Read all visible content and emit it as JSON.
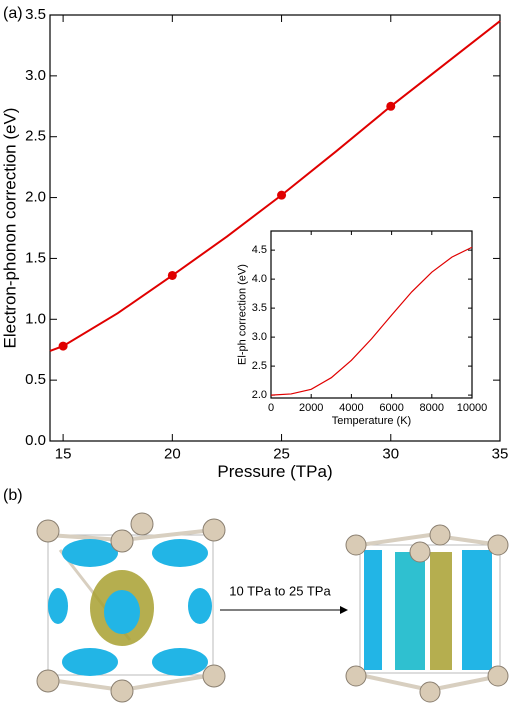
{
  "panel_labels": [
    "(a)",
    "(b)"
  ],
  "chart_data": [
    {
      "type": "line",
      "xlabel": "Pressure (TPa)",
      "ylabel": "Electron-phonon correction (eV)",
      "x": [
        14.4,
        15,
        17.5,
        20,
        22.5,
        25,
        27.5,
        30,
        32.5,
        35
      ],
      "series": [
        {
          "color": "#e00000",
          "values": [
            0.74,
            0.78,
            1.05,
            1.36,
            1.68,
            2.02,
            2.38,
            2.75,
            3.1,
            3.45
          ],
          "line": true,
          "markers": false
        },
        {
          "color": "#e00000",
          "values": [
            null,
            0.78,
            null,
            1.36,
            null,
            2.02,
            null,
            2.75,
            null,
            null
          ],
          "line": false,
          "markers": true
        }
      ],
      "xlim": [
        14.4,
        35
      ],
      "xticks": [
        15,
        20,
        25,
        30,
        35
      ],
      "ylim": [
        0,
        3.5
      ],
      "yticks": [
        {
          "value": 0,
          "label": "0.0"
        },
        {
          "value": 0.5,
          "label": "0.5"
        },
        {
          "value": 1,
          "label": "1.0"
        },
        {
          "value": 1.5,
          "label": "1.5"
        },
        {
          "value": 2,
          "label": "2.0"
        },
        {
          "value": 2.5,
          "label": "2.5"
        },
        {
          "value": 3,
          "label": "3.0"
        },
        {
          "value": 3.5,
          "label": "3.5"
        }
      ]
    },
    {
      "type": "line",
      "xlabel": "Temperature (K)",
      "ylabel": "El-ph correction (eV)",
      "x": [
        0,
        1000,
        2000,
        3000,
        4000,
        5000,
        6000,
        7000,
        8000,
        9000,
        10000
      ],
      "series": [
        {
          "color": "#e00000",
          "values": [
            2.0,
            2.02,
            2.1,
            2.3,
            2.6,
            2.97,
            3.38,
            3.78,
            4.12,
            4.38,
            4.55
          ],
          "line": true,
          "markers": false
        }
      ],
      "xlim": [
        0,
        10000
      ],
      "xticks": [
        0,
        2000,
        4000,
        6000,
        8000,
        10000
      ],
      "ylim": [
        1.95,
        4.83
      ],
      "yticks": [
        {
          "value": 2,
          "label": "2.0"
        },
        {
          "value": 2.5,
          "label": "2.5"
        },
        {
          "value": 3,
          "label": "3.0"
        },
        {
          "value": 3.5,
          "label": "3.5"
        },
        {
          "value": 4,
          "label": "4.0"
        },
        {
          "value": 4.5,
          "label": "4.5"
        }
      ]
    }
  ],
  "diagram": {
    "arrow_label": "10 TPa to 25 TPa"
  }
}
